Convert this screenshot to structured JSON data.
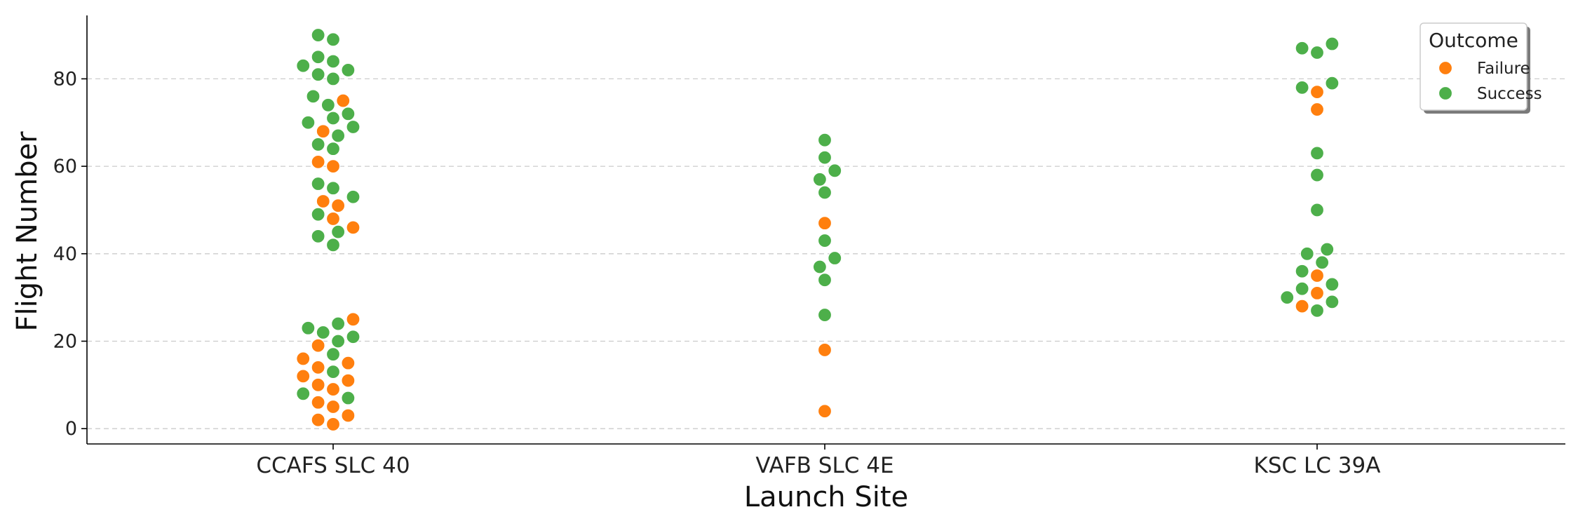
{
  "colors": {
    "Failure": "#ff7f0e",
    "Success": "#4daf4a",
    "grid": "#cccccc",
    "axis": "#000000"
  },
  "chart_data": {
    "type": "scatter",
    "subtype": "swarm",
    "xlabel": "Launch Site",
    "ylabel": "Flight Number",
    "categories": [
      "CCAFS SLC 40",
      "VAFB SLC 4E",
      "KSC LC 39A"
    ],
    "ylim": [
      -3.5,
      94.5
    ],
    "yticks": [
      0,
      20,
      40,
      60,
      80
    ],
    "grid": "horizontal dashed",
    "legend": {
      "title": "Outcome",
      "placement": "top-right",
      "entries": [
        "Failure",
        "Success"
      ]
    },
    "series": [
      {
        "name": "Failure",
        "points": [
          {
            "site": "CCAFS SLC 40",
            "flight": 1
          },
          {
            "site": "CCAFS SLC 40",
            "flight": 2
          },
          {
            "site": "CCAFS SLC 40",
            "flight": 3
          },
          {
            "site": "CCAFS SLC 40",
            "flight": 5
          },
          {
            "site": "CCAFS SLC 40",
            "flight": 6
          },
          {
            "site": "CCAFS SLC 40",
            "flight": 9
          },
          {
            "site": "CCAFS SLC 40",
            "flight": 10
          },
          {
            "site": "CCAFS SLC 40",
            "flight": 11
          },
          {
            "site": "CCAFS SLC 40",
            "flight": 12
          },
          {
            "site": "CCAFS SLC 40",
            "flight": 14
          },
          {
            "site": "CCAFS SLC 40",
            "flight": 15
          },
          {
            "site": "CCAFS SLC 40",
            "flight": 16
          },
          {
            "site": "CCAFS SLC 40",
            "flight": 19
          },
          {
            "site": "CCAFS SLC 40",
            "flight": 25
          },
          {
            "site": "CCAFS SLC 40",
            "flight": 46
          },
          {
            "site": "CCAFS SLC 40",
            "flight": 48
          },
          {
            "site": "CCAFS SLC 40",
            "flight": 51
          },
          {
            "site": "CCAFS SLC 40",
            "flight": 52
          },
          {
            "site": "CCAFS SLC 40",
            "flight": 60
          },
          {
            "site": "CCAFS SLC 40",
            "flight": 61
          },
          {
            "site": "CCAFS SLC 40",
            "flight": 68
          },
          {
            "site": "CCAFS SLC 40",
            "flight": 75
          },
          {
            "site": "VAFB SLC 4E",
            "flight": 4
          },
          {
            "site": "VAFB SLC 4E",
            "flight": 18
          },
          {
            "site": "VAFB SLC 4E",
            "flight": 47
          },
          {
            "site": "KSC LC 39A",
            "flight": 28
          },
          {
            "site": "KSC LC 39A",
            "flight": 31
          },
          {
            "site": "KSC LC 39A",
            "flight": 35
          },
          {
            "site": "KSC LC 39A",
            "flight": 73
          },
          {
            "site": "KSC LC 39A",
            "flight": 77
          }
        ]
      },
      {
        "name": "Success",
        "points": [
          {
            "site": "CCAFS SLC 40",
            "flight": 7
          },
          {
            "site": "CCAFS SLC 40",
            "flight": 8
          },
          {
            "site": "CCAFS SLC 40",
            "flight": 13
          },
          {
            "site": "CCAFS SLC 40",
            "flight": 17
          },
          {
            "site": "CCAFS SLC 40",
            "flight": 20
          },
          {
            "site": "CCAFS SLC 40",
            "flight": 21
          },
          {
            "site": "CCAFS SLC 40",
            "flight": 22
          },
          {
            "site": "CCAFS SLC 40",
            "flight": 23
          },
          {
            "site": "CCAFS SLC 40",
            "flight": 24
          },
          {
            "site": "CCAFS SLC 40",
            "flight": 42
          },
          {
            "site": "CCAFS SLC 40",
            "flight": 44
          },
          {
            "site": "CCAFS SLC 40",
            "flight": 45
          },
          {
            "site": "CCAFS SLC 40",
            "flight": 49
          },
          {
            "site": "CCAFS SLC 40",
            "flight": 53
          },
          {
            "site": "CCAFS SLC 40",
            "flight": 55
          },
          {
            "site": "CCAFS SLC 40",
            "flight": 56
          },
          {
            "site": "CCAFS SLC 40",
            "flight": 64
          },
          {
            "site": "CCAFS SLC 40",
            "flight": 65
          },
          {
            "site": "CCAFS SLC 40",
            "flight": 67
          },
          {
            "site": "CCAFS SLC 40",
            "flight": 69
          },
          {
            "site": "CCAFS SLC 40",
            "flight": 70
          },
          {
            "site": "CCAFS SLC 40",
            "flight": 71
          },
          {
            "site": "CCAFS SLC 40",
            "flight": 72
          },
          {
            "site": "CCAFS SLC 40",
            "flight": 74
          },
          {
            "site": "CCAFS SLC 40",
            "flight": 76
          },
          {
            "site": "CCAFS SLC 40",
            "flight": 80
          },
          {
            "site": "CCAFS SLC 40",
            "flight": 81
          },
          {
            "site": "CCAFS SLC 40",
            "flight": 82
          },
          {
            "site": "CCAFS SLC 40",
            "flight": 83
          },
          {
            "site": "CCAFS SLC 40",
            "flight": 84
          },
          {
            "site": "CCAFS SLC 40",
            "flight": 85
          },
          {
            "site": "CCAFS SLC 40",
            "flight": 89
          },
          {
            "site": "CCAFS SLC 40",
            "flight": 90
          },
          {
            "site": "VAFB SLC 4E",
            "flight": 26
          },
          {
            "site": "VAFB SLC 4E",
            "flight": 34
          },
          {
            "site": "VAFB SLC 4E",
            "flight": 37
          },
          {
            "site": "VAFB SLC 4E",
            "flight": 39
          },
          {
            "site": "VAFB SLC 4E",
            "flight": 43
          },
          {
            "site": "VAFB SLC 4E",
            "flight": 54
          },
          {
            "site": "VAFB SLC 4E",
            "flight": 57
          },
          {
            "site": "VAFB SLC 4E",
            "flight": 59
          },
          {
            "site": "VAFB SLC 4E",
            "flight": 62
          },
          {
            "site": "VAFB SLC 4E",
            "flight": 66
          },
          {
            "site": "KSC LC 39A",
            "flight": 27
          },
          {
            "site": "KSC LC 39A",
            "flight": 29
          },
          {
            "site": "KSC LC 39A",
            "flight": 30
          },
          {
            "site": "KSC LC 39A",
            "flight": 32
          },
          {
            "site": "KSC LC 39A",
            "flight": 33
          },
          {
            "site": "KSC LC 39A",
            "flight": 36
          },
          {
            "site": "KSC LC 39A",
            "flight": 38
          },
          {
            "site": "KSC LC 39A",
            "flight": 40
          },
          {
            "site": "KSC LC 39A",
            "flight": 41
          },
          {
            "site": "KSC LC 39A",
            "flight": 50
          },
          {
            "site": "KSC LC 39A",
            "flight": 58
          },
          {
            "site": "KSC LC 39A",
            "flight": 63
          },
          {
            "site": "KSC LC 39A",
            "flight": 78
          },
          {
            "site": "KSC LC 39A",
            "flight": 79
          },
          {
            "site": "KSC LC 39A",
            "flight": 86
          },
          {
            "site": "KSC LC 39A",
            "flight": 87
          },
          {
            "site": "KSC LC 39A",
            "flight": 88
          }
        ]
      }
    ]
  }
}
